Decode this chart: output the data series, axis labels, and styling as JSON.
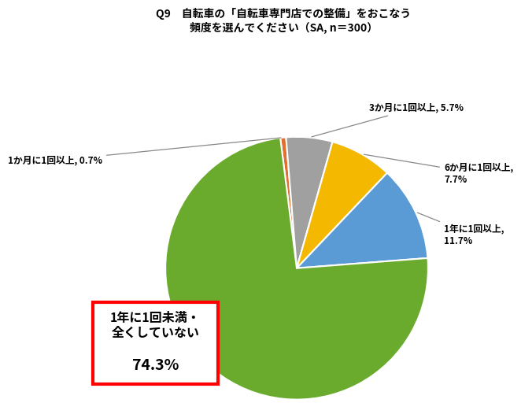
{
  "title_line1": "Q9　自転車の「自転車専門店での整備」をおこなう",
  "title_line2": "頻度を選んでください（SA, n＝300）",
  "slices": [
    {
      "label": "1か月に1回以上",
      "pct": 0.7,
      "color": "#E07030"
    },
    {
      "label": "3か月に1回以上",
      "pct": 5.7,
      "color": "#A0A0A0"
    },
    {
      "label": "6か月に1回以上",
      "pct": 7.7,
      "color": "#F5B800"
    },
    {
      "label": "1年に1回以上",
      "pct": 11.7,
      "color": "#5B9BD5"
    },
    {
      "label": "1年に1回未満・\n全くしていない",
      "pct": 74.3,
      "color": "#6AAB2E"
    }
  ],
  "box_line1": "1年に1回未満・",
  "box_line2": "全くしていない",
  "box_pct": "74.3%",
  "startangle": 97.2,
  "background_color": "#FFFFFF"
}
